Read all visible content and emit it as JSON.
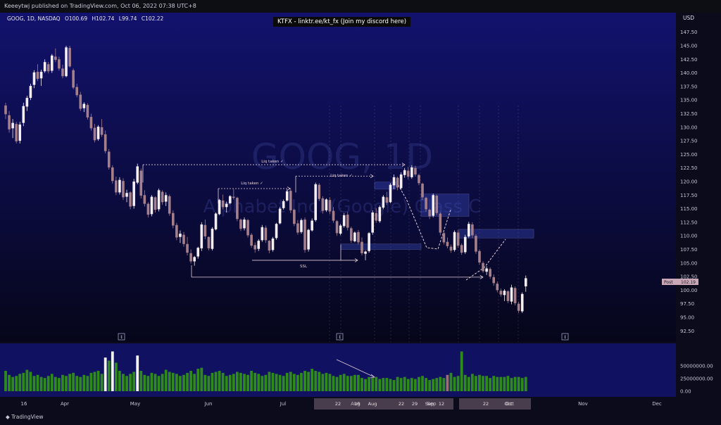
{
  "header": {
    "published": "Keeeytwj published on TradingView.com, Oct 06, 2022 07:38 UTC+8",
    "banner": "KTFX - linktr.ee/kt_fx (Join my discord here)",
    "symbol": "GOOG, 1D, NASDAQ",
    "ohlc": {
      "open": "O100.69",
      "high": "H102.74",
      "low": "L99.74",
      "close": "C102.22"
    },
    "currency": "USD",
    "watermark_symbol": "GOOG, 1D",
    "watermark_name": "Alphabet Inc. (Google) Class C",
    "price_tag": "Post",
    "price_tag_value": "102.19"
  },
  "footer": {
    "brand": "TradingView"
  },
  "colors": {
    "background_top": "#12126e",
    "background_bottom": "#06061a",
    "candle_up": "#f4eef0",
    "candle_down": "#a57f8a",
    "volume_up": "#2f8a1c",
    "volume_big": "#f2f2f2",
    "volume_down": "#9a6e7a",
    "annotation": "#e3ced6",
    "zone_fill": "#3f50c8"
  },
  "chart_data": {
    "type": "candlestick",
    "timeframe": "1D",
    "price_axis": {
      "ylim": [
        91.5,
        148.5
      ],
      "ticks": [
        "147.50",
        "145.00",
        "142.50",
        "140.00",
        "137.50",
        "135.00",
        "132.50",
        "130.00",
        "127.50",
        "125.00",
        "122.50",
        "120.00",
        "117.50",
        "115.00",
        "112.50",
        "110.00",
        "107.50",
        "105.00",
        "102.50",
        "100.00",
        "97.50",
        "95.00",
        "92.50"
      ]
    },
    "volume_axis": {
      "ylim": [
        0,
        80000000
      ],
      "ticks": [
        "50000000.00",
        "25000000.00",
        "0.00"
      ]
    },
    "time_axis": {
      "labels": [
        "16",
        "Apr",
        "May",
        "Jun",
        "Jul",
        "Aug",
        "Sep",
        "Oct",
        "Nov",
        "Dec"
      ],
      "highlighted_labels": [
        "22",
        "16",
        "Aug",
        "22",
        "29",
        "Sep",
        "12",
        "22",
        "Oct"
      ]
    },
    "candles": [
      [
        134.0,
        134.5,
        131.5,
        132.4
      ],
      [
        132.2,
        133.0,
        129.0,
        129.6
      ],
      [
        129.8,
        131.5,
        128.0,
        130.8
      ],
      [
        130.6,
        131.0,
        127.0,
        127.4
      ],
      [
        127.5,
        131.0,
        127.0,
        130.5
      ],
      [
        130.8,
        134.5,
        130.2,
        133.9
      ],
      [
        133.8,
        135.8,
        133.0,
        135.4
      ],
      [
        135.4,
        138.0,
        135.0,
        137.6
      ],
      [
        137.8,
        140.5,
        137.2,
        140.1
      ],
      [
        140.2,
        141.6,
        138.5,
        138.9
      ],
      [
        139.0,
        140.6,
        137.6,
        140.2
      ],
      [
        140.3,
        142.5,
        140.0,
        142.0
      ],
      [
        141.6,
        142.0,
        139.9,
        140.3
      ],
      [
        140.4,
        143.5,
        140.0,
        143.2
      ],
      [
        143.0,
        144.5,
        142.0,
        142.4
      ],
      [
        142.5,
        143.0,
        140.4,
        140.8
      ],
      [
        140.8,
        141.5,
        139.0,
        139.4
      ],
      [
        139.4,
        145.0,
        139.2,
        144.7
      ],
      [
        144.6,
        145.0,
        141.0,
        141.2
      ],
      [
        140.5,
        140.8,
        137.0,
        137.3
      ],
      [
        137.4,
        138.0,
        135.5,
        135.9
      ],
      [
        136.0,
        136.5,
        133.0,
        133.4
      ],
      [
        133.5,
        134.6,
        132.8,
        134.3
      ],
      [
        134.1,
        134.4,
        131.4,
        131.8
      ],
      [
        131.9,
        132.5,
        129.4,
        129.8
      ],
      [
        129.9,
        130.6,
        127.2,
        127.6
      ],
      [
        127.8,
        130.4,
        127.5,
        130.1
      ],
      [
        130.0,
        131.5,
        128.2,
        128.6
      ],
      [
        128.7,
        129.4,
        125.2,
        125.6
      ],
      [
        125.5,
        126.0,
        122.2,
        122.6
      ],
      [
        122.6,
        123.0,
        119.6,
        120.1
      ],
      [
        120.2,
        120.9,
        117.5,
        118.0
      ],
      [
        118.0,
        120.8,
        117.6,
        120.3
      ],
      [
        120.1,
        120.6,
        116.6,
        117.1
      ],
      [
        117.2,
        118.5,
        116.2,
        117.9
      ],
      [
        118.0,
        118.2,
        114.9,
        115.4
      ],
      [
        115.5,
        120.5,
        115.0,
        120.0
      ],
      [
        119.8,
        123.3,
        119.5,
        122.8
      ],
      [
        122.0,
        122.4,
        116.9,
        117.4
      ],
      [
        117.5,
        118.4,
        115.4,
        115.9
      ],
      [
        115.9,
        116.2,
        113.4,
        113.9
      ],
      [
        114.0,
        117.5,
        113.6,
        117.2
      ],
      [
        117.1,
        117.3,
        114.3,
        114.8
      ],
      [
        114.9,
        118.7,
        114.5,
        118.4
      ],
      [
        118.1,
        118.4,
        115.7,
        116.2
      ],
      [
        116.3,
        118.0,
        115.5,
        117.5
      ],
      [
        117.3,
        117.6,
        113.7,
        114.1
      ],
      [
        114.2,
        114.7,
        111.4,
        111.9
      ],
      [
        112.0,
        112.4,
        109.2,
        109.7
      ],
      [
        109.8,
        111.0,
        108.7,
        110.4
      ],
      [
        110.2,
        110.7,
        108.0,
        108.5
      ],
      [
        108.5,
        109.8,
        106.4,
        106.9
      ],
      [
        106.8,
        107.5,
        104.9,
        105.3
      ],
      [
        105.3,
        106.3,
        104.5,
        106.1
      ],
      [
        106.2,
        108.0,
        105.8,
        107.8
      ],
      [
        107.7,
        112.5,
        107.2,
        112.1
      ],
      [
        112.0,
        113.0,
        109.4,
        109.9
      ],
      [
        109.8,
        109.9,
        107.3,
        107.7
      ],
      [
        107.6,
        111.6,
        107.3,
        111.3
      ],
      [
        111.2,
        114.3,
        111.0,
        114.1
      ],
      [
        114.0,
        116.8,
        113.8,
        116.6
      ],
      [
        116.5,
        117.6,
        114.9,
        115.3
      ],
      [
        115.3,
        116.3,
        114.3,
        115.9
      ],
      [
        116.0,
        117.5,
        115.8,
        117.3
      ],
      [
        117.2,
        118.6,
        116.7,
        117.0
      ],
      [
        117.0,
        117.2,
        112.7,
        113.1
      ],
      [
        113.0,
        113.2,
        110.9,
        111.3
      ],
      [
        111.4,
        113.4,
        111.0,
        113.0
      ],
      [
        112.9,
        113.1,
        109.7,
        110.1
      ],
      [
        110.2,
        110.5,
        107.8,
        108.2
      ],
      [
        108.3,
        108.8,
        106.9,
        107.5
      ],
      [
        107.6,
        109.4,
        107.2,
        109.1
      ],
      [
        109.2,
        112.0,
        108.9,
        111.6
      ],
      [
        111.5,
        111.9,
        108.7,
        109.2
      ],
      [
        109.1,
        109.2,
        106.8,
        107.3
      ],
      [
        107.4,
        109.8,
        107.1,
        109.5
      ],
      [
        109.6,
        112.4,
        109.3,
        112.2
      ],
      [
        112.3,
        115.3,
        112.1,
        115.0
      ],
      [
        115.1,
        116.7,
        114.8,
        116.4
      ],
      [
        116.5,
        118.6,
        116.3,
        118.2
      ],
      [
        118.3,
        118.8,
        114.2,
        114.7
      ],
      [
        114.8,
        115.0,
        111.8,
        112.2
      ],
      [
        112.3,
        112.9,
        110.2,
        110.6
      ],
      [
        110.7,
        113.2,
        110.4,
        112.9
      ],
      [
        113.0,
        113.4,
        106.9,
        107.4
      ],
      [
        107.5,
        111.3,
        107.1,
        111.1
      ],
      [
        111.0,
        113.2,
        110.8,
        112.8
      ],
      [
        112.9,
        119.8,
        112.6,
        119.5
      ],
      [
        119.4,
        119.7,
        116.4,
        116.8
      ],
      [
        116.9,
        117.3,
        114.1,
        114.6
      ],
      [
        114.7,
        116.9,
        114.4,
        116.7
      ],
      [
        116.6,
        117.1,
        114.0,
        114.5
      ],
      [
        114.6,
        115.3,
        112.4,
        112.8
      ],
      [
        112.7,
        112.9,
        110.0,
        110.5
      ],
      [
        110.4,
        112.2,
        110.1,
        111.9
      ],
      [
        111.8,
        114.2,
        111.5,
        113.8
      ],
      [
        113.9,
        114.4,
        111.0,
        111.5
      ],
      [
        111.4,
        111.7,
        108.7,
        109.1
      ],
      [
        109.0,
        110.8,
        108.8,
        110.6
      ],
      [
        110.7,
        111.1,
        108.4,
        108.8
      ],
      [
        108.9,
        109.7,
        106.4,
        106.8
      ],
      [
        106.7,
        107.3,
        105.5,
        107.1
      ],
      [
        107.2,
        110.7,
        106.9,
        110.5
      ],
      [
        110.6,
        114.7,
        110.2,
        114.3
      ],
      [
        114.2,
        115.1,
        112.4,
        112.8
      ],
      [
        112.7,
        115.6,
        112.4,
        115.3
      ],
      [
        115.2,
        117.5,
        114.9,
        117.2
      ],
      [
        117.1,
        118.1,
        115.7,
        116.1
      ],
      [
        116.2,
        119.7,
        116.0,
        119.4
      ],
      [
        119.3,
        121.3,
        118.6,
        120.8
      ],
      [
        120.7,
        120.9,
        118.4,
        118.9
      ],
      [
        118.8,
        121.7,
        118.5,
        121.3
      ],
      [
        121.2,
        122.5,
        120.7,
        122.1
      ],
      [
        122.0,
        122.7,
        120.4,
        120.9
      ],
      [
        120.8,
        123.0,
        120.5,
        122.6
      ],
      [
        122.5,
        122.9,
        120.9,
        121.3
      ],
      [
        121.2,
        121.4,
        119.3,
        119.7
      ],
      [
        119.6,
        119.8,
        116.6,
        117.1
      ],
      [
        117.0,
        117.2,
        114.4,
        114.9
      ],
      [
        114.8,
        115.0,
        113.1,
        113.6
      ],
      [
        113.7,
        117.8,
        113.4,
        117.5
      ],
      [
        117.4,
        117.6,
        113.8,
        114.2
      ],
      [
        114.1,
        114.4,
        110.1,
        110.6
      ],
      [
        110.5,
        110.7,
        108.4,
        108.8
      ],
      [
        108.9,
        109.7,
        107.7,
        108.1
      ],
      [
        108.0,
        108.4,
        106.9,
        107.3
      ],
      [
        107.4,
        111.0,
        107.1,
        110.7
      ],
      [
        110.6,
        111.1,
        107.8,
        108.2
      ],
      [
        108.3,
        108.6,
        106.5,
        106.9
      ],
      [
        107.0,
        110.2,
        106.7,
        109.8
      ],
      [
        109.9,
        112.6,
        109.6,
        112.2
      ],
      [
        112.1,
        112.5,
        109.6,
        110.1
      ],
      [
        110.0,
        110.3,
        106.7,
        107.1
      ],
      [
        107.2,
        107.5,
        104.7,
        105.1
      ],
      [
        105.0,
        105.3,
        103.2,
        103.5
      ],
      [
        103.4,
        104.4,
        102.8,
        104.0
      ],
      [
        103.9,
        104.2,
        102.1,
        102.5
      ],
      [
        102.4,
        102.9,
        100.8,
        101.3
      ],
      [
        101.2,
        101.6,
        99.6,
        100.0
      ],
      [
        99.9,
        100.3,
        98.8,
        99.2
      ],
      [
        99.1,
        100.2,
        98.0,
        99.9
      ],
      [
        99.8,
        100.0,
        97.6,
        98.0
      ],
      [
        97.9,
        101.0,
        97.4,
        100.5
      ],
      [
        100.4,
        100.7,
        97.2,
        97.6
      ],
      [
        97.5,
        97.9,
        95.8,
        96.2
      ],
      [
        96.1,
        99.6,
        95.8,
        99.3
      ],
      [
        100.7,
        102.7,
        99.7,
        102.2
      ]
    ],
    "volumes_millions": [
      40,
      32,
      28,
      30,
      34,
      36,
      42,
      38,
      30,
      32,
      28,
      26,
      30,
      34,
      28,
      26,
      32,
      30,
      34,
      36,
      30,
      28,
      32,
      30,
      36,
      38,
      40,
      34,
      66,
      60,
      78,
      56,
      40,
      34,
      30,
      34,
      38,
      70,
      40,
      32,
      30,
      36,
      34,
      30,
      34,
      42,
      38,
      36,
      34,
      30,
      32,
      36,
      40,
      34,
      44,
      46,
      32,
      30,
      36,
      38,
      40,
      36,
      30,
      32,
      34,
      38,
      36,
      34,
      32,
      40,
      36,
      34,
      30,
      32,
      38,
      36,
      34,
      32,
      30,
      36,
      38,
      34,
      32,
      36,
      40,
      38,
      44,
      40,
      38,
      34,
      36,
      34,
      30,
      28,
      32,
      34,
      30,
      30,
      32,
      32,
      26,
      24,
      28,
      26,
      28,
      24,
      26,
      26,
      24,
      22,
      28,
      26,
      28,
      24,
      26,
      24,
      28,
      30,
      26,
      22,
      24,
      26,
      28,
      26,
      32,
      36,
      28,
      30,
      78,
      32,
      28,
      34,
      30,
      32,
      30,
      30,
      26,
      30,
      28,
      28,
      28,
      30,
      26,
      28,
      28,
      26,
      28
    ],
    "big_volume_bar_indices": [
      28,
      30,
      37
    ],
    "down_volume_bar_indices": [
      124
    ],
    "annotations": {
      "texts": [
        "Liq taken ✓",
        "Liq taken ✓",
        "Liq taken ✓",
        "SSL"
      ],
      "ssl_level": 106.0,
      "lines": [
        {
          "label": "Liq taken ✓",
          "price": 123.1
        },
        {
          "label": "Liq taken ✓",
          "price": 121.0
        },
        {
          "label": "Liq taken ✓",
          "price": 118.7
        },
        {
          "label": "SSL",
          "price": 105.5
        },
        {
          "label": "",
          "price": 102.4
        }
      ],
      "zones": [
        {
          "top": 117.7,
          "bottom": 113.6
        },
        {
          "top": 111.2,
          "bottom": 109.6
        },
        {
          "top": 108.5,
          "bottom": 107.5
        },
        {
          "top": 119.9,
          "bottom": 118.6
        }
      ]
    },
    "markers": [
      "↕",
      "↕",
      "↕"
    ]
  }
}
